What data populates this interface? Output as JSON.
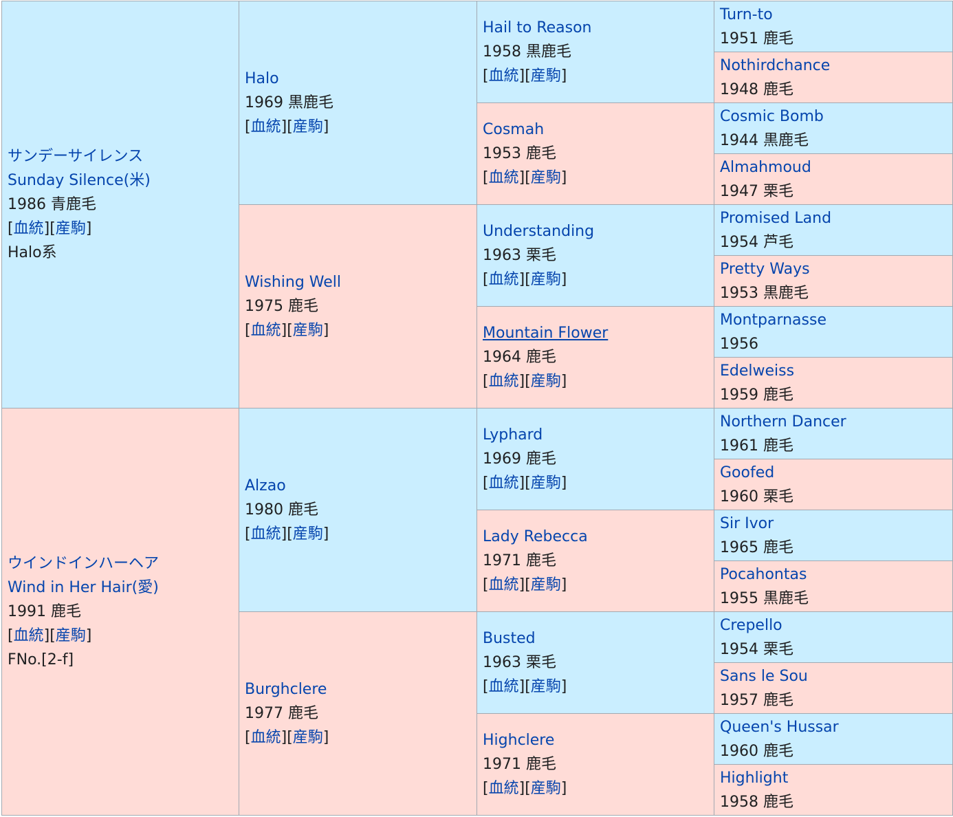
{
  "gen1": [
    {
      "name_ja": "サンデーサイレンス",
      "name_en": "Sunday Silence(米)",
      "info": "1986 青鹿毛",
      "lineage_link": "血統",
      "progeny_link": "産駒",
      "extra": "Halo系"
    },
    {
      "name_ja": "ウインドインハーヘア",
      "name_en": "Wind in Her Hair(愛)",
      "info": "1991 鹿毛",
      "lineage_link": "血統",
      "progeny_link": "産駒",
      "extra": "FNo.[2-f]"
    }
  ],
  "gen2": [
    {
      "name": "Halo",
      "info": "1969 黒鹿毛",
      "lineage_link": "血統",
      "progeny_link": "産駒"
    },
    {
      "name": "Wishing Well",
      "info": "1975 鹿毛",
      "lineage_link": "血統",
      "progeny_link": "産駒"
    },
    {
      "name": "Alzao",
      "info": "1980 鹿毛",
      "lineage_link": "血統",
      "progeny_link": "産駒"
    },
    {
      "name": "Burghclere",
      "info": "1977 鹿毛",
      "lineage_link": "血統",
      "progeny_link": "産駒"
    }
  ],
  "gen3": [
    {
      "name": "Hail to Reason",
      "info": "1958 黒鹿毛",
      "lineage_link": "血統",
      "progeny_link": "産駒"
    },
    {
      "name": "Cosmah",
      "info": "1953 鹿毛",
      "lineage_link": "血統",
      "progeny_link": "産駒"
    },
    {
      "name": "Understanding",
      "info": "1963 栗毛",
      "lineage_link": "血統",
      "progeny_link": "産駒"
    },
    {
      "name": "Mountain Flower",
      "info": "1964 鹿毛",
      "lineage_link": "血統",
      "progeny_link": "産駒"
    },
    {
      "name": "Lyphard",
      "info": "1969 鹿毛",
      "lineage_link": "血統",
      "progeny_link": "産駒"
    },
    {
      "name": "Lady Rebecca",
      "info": "1971 鹿毛",
      "lineage_link": "血統",
      "progeny_link": "産駒"
    },
    {
      "name": "Busted",
      "info": "1963 栗毛",
      "lineage_link": "血統",
      "progeny_link": "産駒"
    },
    {
      "name": "Highclere",
      "info": "1971 鹿毛",
      "lineage_link": "血統",
      "progeny_link": "産駒"
    }
  ],
  "gen4": [
    {
      "name": "Turn-to",
      "info": "1951 鹿毛"
    },
    {
      "name": "Nothirdchance",
      "info": "1948 鹿毛"
    },
    {
      "name": "Cosmic Bomb",
      "info": "1944 黒鹿毛"
    },
    {
      "name": "Almahmoud",
      "info": "1947 栗毛"
    },
    {
      "name": "Promised Land",
      "info": "1954 芦毛"
    },
    {
      "name": "Pretty Ways",
      "info": "1953 黒鹿毛"
    },
    {
      "name": "Montparnasse",
      "info": "1956"
    },
    {
      "name": "Edelweiss",
      "info": "1959 鹿毛"
    },
    {
      "name": "Northern Dancer",
      "info": "1961 鹿毛"
    },
    {
      "name": "Goofed",
      "info": "1960 栗毛"
    },
    {
      "name": "Sir Ivor",
      "info": "1965 鹿毛"
    },
    {
      "name": "Pocahontas",
      "info": "1955 黒鹿毛"
    },
    {
      "name": "Crepello",
      "info": "1954 栗毛"
    },
    {
      "name": "Sans le Sou",
      "info": "1957 鹿毛"
    },
    {
      "name": "Queen's Hussar",
      "info": "1960 鹿毛"
    },
    {
      "name": "Highlight",
      "info": "1958 鹿毛"
    }
  ],
  "colors": {
    "sire_bg": "#caeeff",
    "dam_bg": "#ffdcd7",
    "link": "#0645ad",
    "border": "#a2a9b1"
  }
}
